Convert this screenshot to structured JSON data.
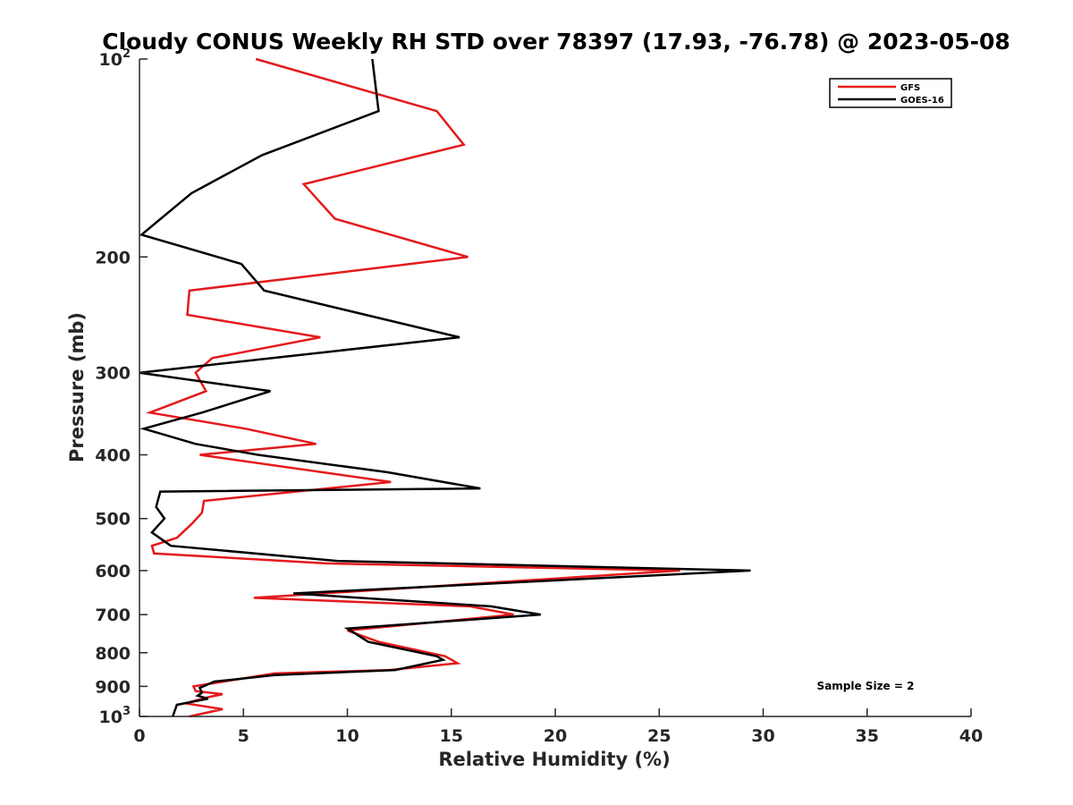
{
  "chart_data": {
    "type": "line",
    "title": "Cloudy CONUS Weekly RH STD over 78397 (17.93, -76.78) @ 2023-05-08",
    "xlabel": "Relative Humidity (%)",
    "ylabel": "Pressure (mb)",
    "xlim": [
      0,
      40
    ],
    "ylim": [
      100,
      1000
    ],
    "y_scale": "log",
    "y_reversed": true,
    "grid": false,
    "legend_position": "top-right",
    "x_ticks": [
      {
        "value": 0,
        "label": "0"
      },
      {
        "value": 5,
        "label": "5"
      },
      {
        "value": 10,
        "label": "10"
      },
      {
        "value": 15,
        "label": "15"
      },
      {
        "value": 20,
        "label": "20"
      },
      {
        "value": 25,
        "label": "25"
      },
      {
        "value": 30,
        "label": "30"
      },
      {
        "value": 35,
        "label": "35"
      },
      {
        "value": 40,
        "label": "40"
      }
    ],
    "y_ticks": [
      {
        "value": 100,
        "base": "10",
        "exp": "2"
      },
      {
        "value": 200,
        "base": "200",
        "exp": ""
      },
      {
        "value": 300,
        "base": "300",
        "exp": ""
      },
      {
        "value": 400,
        "base": "400",
        "exp": ""
      },
      {
        "value": 500,
        "base": "500",
        "exp": ""
      },
      {
        "value": 600,
        "base": "600",
        "exp": ""
      },
      {
        "value": 700,
        "base": "700",
        "exp": ""
      },
      {
        "value": 800,
        "base": "800",
        "exp": ""
      },
      {
        "value": 900,
        "base": "900",
        "exp": ""
      },
      {
        "value": 1000,
        "base": "10",
        "exp": "3"
      }
    ],
    "annotation": "Sample Size = 2",
    "series": [
      {
        "name": "GFS",
        "color": "#e41a1c",
        "x": [
          5.6,
          14.3,
          15.6,
          7.9,
          9.4,
          15.8,
          2.4,
          2.3,
          8.7,
          3.5,
          2.7,
          3.2,
          0.5,
          5.1,
          8.5,
          2.9,
          12.1,
          3.1,
          3.0,
          2.5,
          1.8,
          0.6,
          0.7,
          9.0,
          26.0,
          5.5,
          15.9,
          18.0,
          10.0,
          11.5,
          14.7,
          15.3,
          12.0,
          6.5,
          2.6,
          2.7,
          4.0,
          3.3,
          2.2,
          4.0,
          2.4
        ],
        "y": [
          100,
          120,
          135,
          155,
          175,
          200,
          225,
          245,
          265,
          285,
          300,
          320,
          345,
          365,
          385,
          400,
          440,
          470,
          490,
          510,
          535,
          550,
          565,
          585,
          600,
          660,
          680,
          700,
          740,
          770,
          810,
          830,
          850,
          860,
          900,
          915,
          925,
          935,
          955,
          975,
          1000
        ]
      },
      {
        "name": "GOES-16",
        "color": "#000000",
        "x": [
          11.2,
          11.5,
          5.9,
          2.5,
          0.1,
          4.9,
          6.0,
          15.4,
          0.0,
          6.3,
          3.0,
          0.2,
          2.7,
          5.7,
          11.9,
          16.4,
          1.0,
          0.8,
          1.2,
          0.6,
          1.5,
          9.5,
          29.4,
          7.4,
          16.9,
          19.3,
          10.0,
          11.0,
          14.3,
          14.6,
          12.3,
          6.5,
          3.6,
          2.9,
          3.0,
          2.8,
          3.3,
          1.8,
          1.6
        ],
        "y": [
          100,
          120,
          140,
          160,
          185,
          205,
          225,
          265,
          300,
          320,
          345,
          365,
          385,
          400,
          425,
          450,
          455,
          480,
          500,
          525,
          550,
          580,
          600,
          650,
          680,
          700,
          735,
          770,
          810,
          820,
          850,
          865,
          885,
          905,
          920,
          930,
          940,
          960,
          1000
        ]
      }
    ]
  }
}
